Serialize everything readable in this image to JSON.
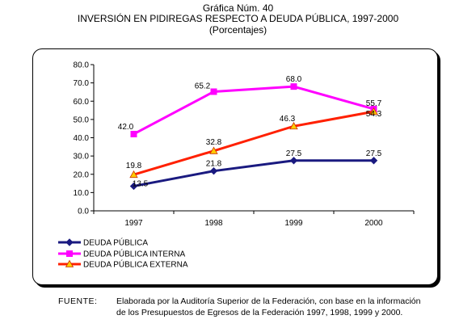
{
  "header": {
    "chart_number": "Gráfica Núm. 40",
    "title": "INVERSIÓN EN PIDIREGAS RESPECTO A DEUDA PÚBLICA, 1997-2000",
    "subtitle": "(Porcentajes)"
  },
  "chart_data": {
    "type": "line",
    "categories": [
      "1997",
      "1998",
      "1999",
      "2000"
    ],
    "ylim": [
      0,
      80
    ],
    "y_ticks": [
      "0.0",
      "10.0",
      "20.0",
      "30.0",
      "40.0",
      "50.0",
      "60.0",
      "70.0",
      "80.0"
    ],
    "grid": false,
    "legend_position": "bottom-left",
    "series": [
      {
        "name": "DEUDA PÚBLICA",
        "values": [
          13.5,
          21.8,
          27.5,
          27.5
        ],
        "labels": [
          "13.5",
          "21.8",
          "27.5",
          "27.5"
        ],
        "color": "#1a1a80",
        "marker": "diamond"
      },
      {
        "name": "DEUDA PÚBLICA INTERNA",
        "values": [
          42.0,
          65.2,
          68.0,
          55.7
        ],
        "labels": [
          "42.0",
          "65.2",
          "68.0",
          "55.7"
        ],
        "color": "#ff00ff",
        "marker": "square"
      },
      {
        "name": "DEUDA PÚBLICA EXTERNA",
        "values": [
          19.8,
          32.8,
          46.3,
          54.3
        ],
        "labels": [
          "19.8",
          "32.8",
          "46.3",
          "54.3"
        ],
        "color": "#ff2000",
        "marker": "triangle",
        "marker_color": "#ffcc00"
      }
    ]
  },
  "source": {
    "label": "FUENTE:",
    "line1": "Elaborada por la Auditoría Superior de la Federación, con base en la información",
    "line2": "de los Presupuestos de Egresos de la Federación 1997, 1998, 1999 y 2000."
  }
}
